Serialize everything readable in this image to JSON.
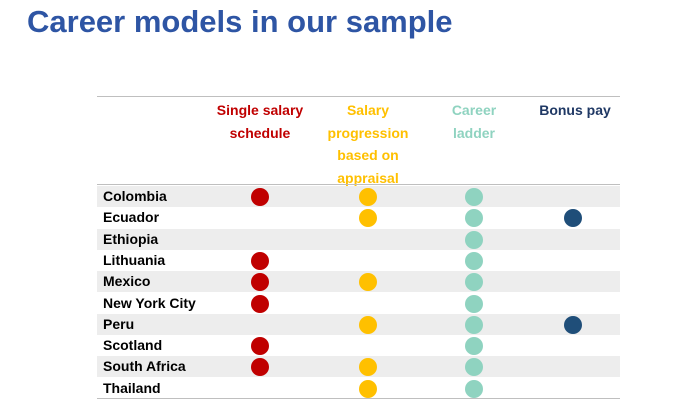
{
  "title": "Career models in our sample",
  "columns": [
    "Single salary\nschedule",
    "Salary\nprogression\nbased on\nappraisal",
    "Career\nladder",
    "Bonus pay"
  ],
  "column_colors": [
    "#c00000",
    "#ffc000",
    "#8fd3c0",
    "#1f4e79"
  ],
  "rows": [
    {
      "label": "Colombia",
      "marks": [
        true,
        true,
        true,
        false
      ]
    },
    {
      "label": "Ecuador",
      "marks": [
        false,
        true,
        true,
        true
      ]
    },
    {
      "label": "Ethiopia",
      "marks": [
        false,
        false,
        true,
        false
      ]
    },
    {
      "label": "Lithuania",
      "marks": [
        true,
        false,
        true,
        false
      ]
    },
    {
      "label": "Mexico",
      "marks": [
        true,
        true,
        true,
        false
      ]
    },
    {
      "label": "New York City",
      "marks": [
        true,
        false,
        true,
        false
      ]
    },
    {
      "label": "Peru",
      "marks": [
        false,
        true,
        true,
        true
      ]
    },
    {
      "label": "Scotland",
      "marks": [
        true,
        false,
        true,
        false
      ]
    },
    {
      "label": "South Africa",
      "marks": [
        true,
        true,
        true,
        false
      ]
    },
    {
      "label": "Thailand",
      "marks": [
        false,
        true,
        true,
        false
      ]
    }
  ]
}
